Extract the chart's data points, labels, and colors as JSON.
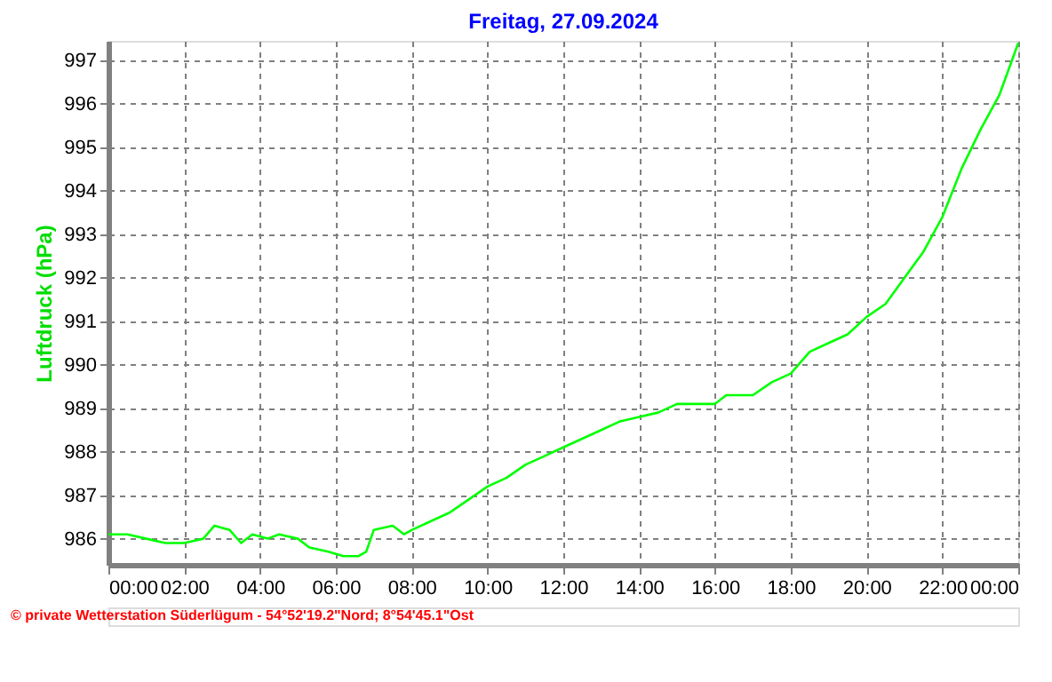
{
  "chart_data": {
    "type": "line",
    "title": "Freitag, 27.09.2024",
    "ylabel": "Luftdruck (hPa)",
    "x": [
      0,
      0.5,
      1,
      1.5,
      2,
      2.5,
      2.8,
      3.2,
      3.5,
      3.8,
      4.2,
      4.5,
      5,
      5.3,
      5.8,
      6.2,
      6.6,
      6.8,
      7,
      7.5,
      7.8,
      8,
      8.5,
      9,
      9.5,
      10,
      10.5,
      11,
      11.5,
      12,
      12.5,
      13,
      13.5,
      14,
      14.5,
      15,
      15.5,
      16,
      16.3,
      17,
      17.5,
      18,
      18.5,
      19,
      19.5,
      20,
      20.5,
      21,
      21.5,
      22,
      22.5,
      23,
      23.5,
      24
    ],
    "series": [
      {
        "color": "#00ff00",
        "values": [
          986.1,
          986.1,
          986.0,
          985.9,
          985.9,
          986.0,
          986.3,
          986.2,
          985.9,
          986.1,
          986.0,
          986.1,
          986.0,
          985.8,
          985.7,
          985.6,
          985.6,
          985.7,
          986.2,
          986.3,
          986.1,
          986.2,
          986.4,
          986.6,
          986.9,
          987.2,
          987.4,
          987.7,
          987.9,
          988.1,
          988.3,
          988.5,
          988.7,
          988.8,
          988.9,
          989.1,
          989.1,
          989.1,
          989.3,
          989.3,
          989.6,
          989.8,
          990.3,
          990.5,
          990.7,
          991.1,
          991.4,
          992.0,
          992.6,
          993.4,
          994.5,
          995.4,
          996.2,
          997.4
        ]
      }
    ],
    "xlim": [
      0,
      24
    ],
    "xticks": [
      {
        "value": 0,
        "label": "00:00"
      },
      {
        "value": 2,
        "label": "02:00"
      },
      {
        "value": 4,
        "label": "04:00"
      },
      {
        "value": 6,
        "label": "06:00"
      },
      {
        "value": 8,
        "label": "08:00"
      },
      {
        "value": 10,
        "label": "10:00"
      },
      {
        "value": 12,
        "label": "12:00"
      },
      {
        "value": 14,
        "label": "14:00"
      },
      {
        "value": 16,
        "label": "16:00"
      },
      {
        "value": 18,
        "label": "18:00"
      },
      {
        "value": 20,
        "label": "20:00"
      },
      {
        "value": 22,
        "label": "22:00"
      },
      {
        "value": 24,
        "label": "00:00"
      }
    ],
    "ylim": [
      985.4,
      997.45
    ],
    "yticks": [
      986,
      987,
      988,
      989,
      990,
      991,
      992,
      993,
      994,
      995,
      996,
      997
    ],
    "grid": true,
    "line_style": "solid",
    "marker": "none",
    "annotations": [
      "© private Wetterstation Süderlügum - 54°52'19.2\"Nord; 8°54'45.1\"Ost"
    ]
  }
}
